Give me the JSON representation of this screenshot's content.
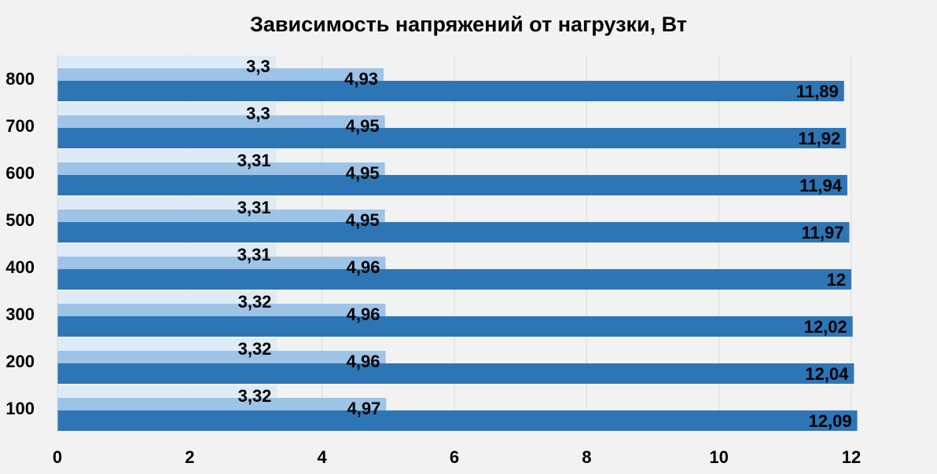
{
  "chart_data": {
    "type": "bar",
    "orientation": "horizontal",
    "title": "Зависимость напряжений от нагрузки, Вт",
    "xlabel": "",
    "ylabel": "",
    "xlim": [
      0,
      12
    ],
    "x_ticks": [
      "0",
      "2",
      "4",
      "6",
      "8",
      "10",
      "12"
    ],
    "categories": [
      "100",
      "200",
      "300",
      "400",
      "500",
      "600",
      "700",
      "800"
    ],
    "series": [
      {
        "color": "#deebf7",
        "values": [
          3.32,
          3.32,
          3.32,
          3.31,
          3.31,
          3.31,
          3.3,
          3.3
        ],
        "labels": [
          "3,32",
          "3,32",
          "3,32",
          "3,31",
          "3,31",
          "3,31",
          "3,3",
          "3,3"
        ]
      },
      {
        "color": "#9dc3e6",
        "values": [
          4.97,
          4.96,
          4.96,
          4.96,
          4.95,
          4.95,
          4.95,
          4.93
        ],
        "labels": [
          "4,97",
          "4,96",
          "4,96",
          "4,96",
          "4,95",
          "4,95",
          "4,95",
          "4,93"
        ]
      },
      {
        "color": "#2e75b6",
        "values": [
          12.09,
          12.04,
          12.02,
          12,
          11.97,
          11.94,
          11.92,
          11.89
        ],
        "labels": [
          "12,09",
          "12,04",
          "12,02",
          "12",
          "11,97",
          "11,94",
          "11,92",
          "11,89"
        ]
      }
    ],
    "grid": "vertical",
    "legend": "none",
    "data_labels": "inside-end"
  }
}
